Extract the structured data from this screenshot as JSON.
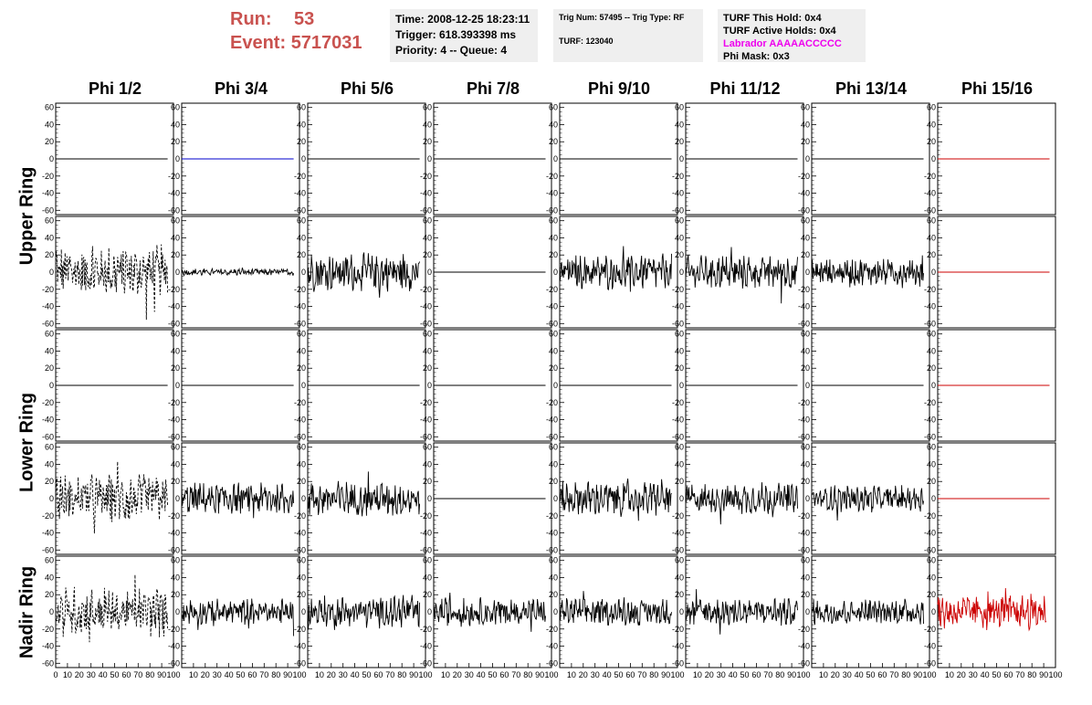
{
  "header": {
    "run_label": "Run:",
    "run_value": "53",
    "event_label": "Event:",
    "event_value": "5717031"
  },
  "info": {
    "time": "Time: 2008-12-25 18:23:11",
    "trigger": "Trigger: 618.393398 ms",
    "priority": "Priority: 4 -- Queue: 4",
    "trig_num": "Trig Num: 57495 -- Trig Type: RF",
    "turf": "TURF: 123040",
    "turf_hold": "TURF This Hold: 0x4",
    "turf_active": "TURF Active Holds: 0x4",
    "labrador": "Labrador AAAAACCCCC",
    "phi_mask": "Phi Mask: 0x3"
  },
  "phi_headers": [
    "Phi 1/2",
    "Phi 3/4",
    "Phi 5/6",
    "Phi 7/8",
    "Phi 9/10",
    "Phi 11/12",
    "Phi 13/14",
    "Phi 15/16"
  ],
  "ring_labels": [
    "Upper Ring",
    "Lower Ring",
    "Nadir Ring"
  ],
  "y_ticks": [
    "60",
    "40",
    "20",
    "0",
    "-20",
    "-40",
    "-60"
  ],
  "x_ticks": [
    "0",
    "10",
    "20",
    "30",
    "40",
    "50",
    "60",
    "70",
    "80",
    "90",
    "100"
  ],
  "colors": {
    "run_text": "#c9524f",
    "magenta": "#ee00ee",
    "blue_trace": "#0000cc",
    "red_trace": "#cc0000",
    "panel_bg": "#efefef"
  },
  "chart_data": {
    "type": "line",
    "xlim": [
      0,
      100
    ],
    "ylim": [
      -65,
      65
    ],
    "rows": 5,
    "cols": 8,
    "row_groups": [
      {
        "name": "Upper Ring",
        "rows": [
          0,
          1
        ]
      },
      {
        "name": "Lower Ring",
        "rows": [
          2,
          3
        ]
      },
      {
        "name": "Nadir Ring",
        "rows": [
          4
        ]
      }
    ],
    "trace_amplitude": [
      [
        0,
        0,
        0,
        0,
        0,
        0,
        0,
        0
      ],
      [
        30,
        4,
        22,
        0,
        20,
        20,
        17,
        0
      ],
      [
        0,
        0,
        0,
        0,
        0,
        0,
        0,
        0
      ],
      [
        28,
        18,
        20,
        0,
        20,
        18,
        15,
        0
      ],
      [
        28,
        15,
        18,
        16,
        15,
        17,
        15,
        20
      ]
    ],
    "trace_style": [
      [
        "solid",
        "blue",
        "solid",
        "solid",
        "solid",
        "solid",
        "solid",
        "red"
      ],
      [
        "dashed",
        "solid",
        "solid",
        "solid",
        "solid",
        "solid",
        "solid",
        "red"
      ],
      [
        "solid",
        "solid",
        "solid",
        "solid",
        "solid",
        "solid",
        "solid",
        "red"
      ],
      [
        "dashed",
        "solid",
        "solid",
        "solid",
        "solid",
        "solid",
        "solid",
        "red"
      ],
      [
        "dashed",
        "solid",
        "solid",
        "solid",
        "solid",
        "solid",
        "solid",
        "red"
      ]
    ]
  }
}
